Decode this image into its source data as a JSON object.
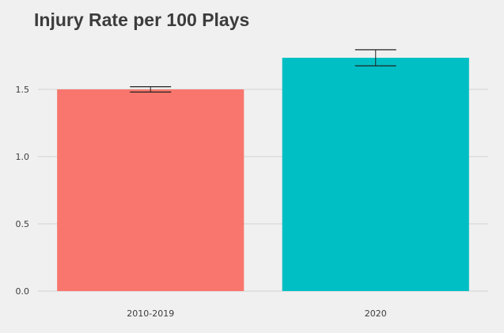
{
  "colors": {
    "background": "#f0f0f0",
    "gridline": "#d2d2d2",
    "text": "#3c3c3c",
    "errorbar": "#222222"
  },
  "chart_data": {
    "type": "bar",
    "title": "Injury Rate per 100 Plays",
    "xlabel": "",
    "ylabel": "",
    "categories": [
      "2010-2019",
      "2020"
    ],
    "values": [
      1.5,
      1.735
    ],
    "error_low": [
      1.48,
      1.675
    ],
    "error_high": [
      1.52,
      1.795
    ],
    "bar_colors": [
      "#f8766d",
      "#00bfc4"
    ],
    "ylim": [
      0,
      1.8
    ],
    "y_ticks": [
      0.0,
      0.5,
      1.0,
      1.5
    ],
    "y_tick_labels": [
      "0.0",
      "0.5",
      "1.0",
      "1.5"
    ],
    "grid": true,
    "legend": "none"
  }
}
